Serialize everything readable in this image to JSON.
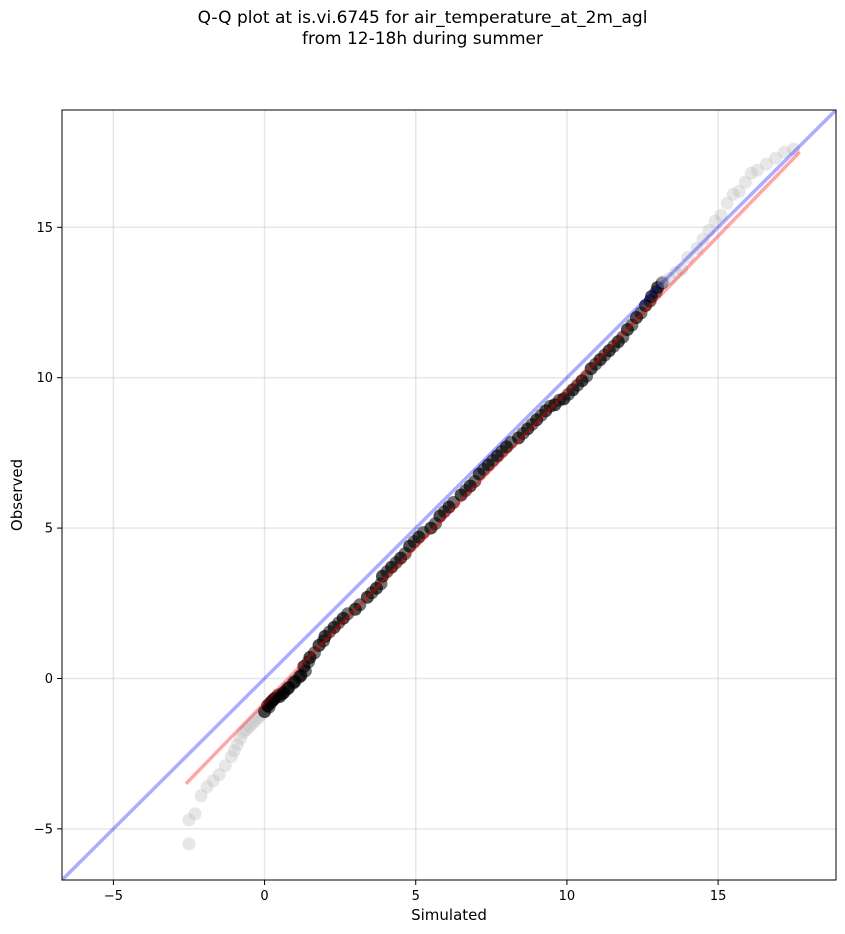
{
  "chart_data": {
    "type": "scatter",
    "title_line1": "Q-Q plot at is.vi.6745 for air_temperature_at_2m_agl",
    "title_line2": "from 12-18h during summer",
    "xlabel": "Simulated",
    "ylabel": "Observed",
    "xlim": [
      -6.7,
      18.9
    ],
    "ylim": [
      -6.7,
      18.9
    ],
    "xticks": [
      -5,
      0,
      5,
      10,
      15
    ],
    "yticks": [
      -5,
      0,
      5,
      10,
      15
    ],
    "xtick_labels": [
      "−5",
      "0",
      "5",
      "10",
      "15"
    ],
    "ytick_labels": [
      "−5",
      "0",
      "5",
      "10",
      "15"
    ],
    "grid": true,
    "series": [
      {
        "kind": "points",
        "color": "#000000",
        "tail_color": "#bbbbbb",
        "points": [
          [
            -2.5,
            -5.5
          ],
          [
            -2.5,
            -4.7
          ],
          [
            -2.3,
            -4.5
          ],
          [
            -2.1,
            -3.9
          ],
          [
            -1.9,
            -3.6
          ],
          [
            -1.7,
            -3.4
          ],
          [
            -1.5,
            -3.2
          ],
          [
            -1.3,
            -2.9
          ],
          [
            -1.1,
            -2.6
          ],
          [
            -1.0,
            -2.4
          ],
          [
            -0.9,
            -2.2
          ],
          [
            -0.8,
            -2.0
          ],
          [
            -0.7,
            -1.8
          ],
          [
            -0.6,
            -1.7
          ],
          [
            -0.5,
            -1.6
          ],
          [
            -0.4,
            -1.5
          ],
          [
            -0.3,
            -1.4
          ],
          [
            -0.2,
            -1.3
          ],
          [
            -0.1,
            -1.2
          ],
          [
            0.0,
            -1.1
          ],
          [
            0.1,
            -0.9
          ],
          [
            0.2,
            -0.8
          ],
          [
            0.3,
            -0.7
          ],
          [
            0.5,
            -0.6
          ],
          [
            0.6,
            -0.5
          ],
          [
            0.8,
            -0.3
          ],
          [
            1.0,
            -0.1
          ],
          [
            1.2,
            0.1
          ],
          [
            1.3,
            0.4
          ],
          [
            1.5,
            0.7
          ],
          [
            1.8,
            1.1
          ],
          [
            2.0,
            1.4
          ],
          [
            2.3,
            1.7
          ],
          [
            2.6,
            2.0
          ],
          [
            3.0,
            2.3
          ],
          [
            3.4,
            2.7
          ],
          [
            3.7,
            3.0
          ],
          [
            3.9,
            3.4
          ],
          [
            4.2,
            3.7
          ],
          [
            4.5,
            4.0
          ],
          [
            4.8,
            4.4
          ],
          [
            5.1,
            4.7
          ],
          [
            5.5,
            5.0
          ],
          [
            5.8,
            5.4
          ],
          [
            6.1,
            5.7
          ],
          [
            6.5,
            6.1
          ],
          [
            6.8,
            6.4
          ],
          [
            7.1,
            6.8
          ],
          [
            7.4,
            7.1
          ],
          [
            7.7,
            7.4
          ],
          [
            8.0,
            7.7
          ],
          [
            8.4,
            8.0
          ],
          [
            8.7,
            8.3
          ],
          [
            9.0,
            8.6
          ],
          [
            9.3,
            8.9
          ],
          [
            9.6,
            9.1
          ],
          [
            9.9,
            9.3
          ],
          [
            10.2,
            9.6
          ],
          [
            10.5,
            9.9
          ],
          [
            10.8,
            10.3
          ],
          [
            11.1,
            10.6
          ],
          [
            11.4,
            10.9
          ],
          [
            11.7,
            11.2
          ],
          [
            12.0,
            11.6
          ],
          [
            12.3,
            12.0
          ],
          [
            12.6,
            12.4
          ],
          [
            12.8,
            12.7
          ],
          [
            13.0,
            13.0
          ],
          [
            13.2,
            13.2
          ],
          [
            13.4,
            13.3
          ],
          [
            13.6,
            13.5
          ],
          [
            13.8,
            13.6
          ],
          [
            14.0,
            14.0
          ],
          [
            14.3,
            14.3
          ],
          [
            14.5,
            14.6
          ],
          [
            14.7,
            14.9
          ],
          [
            14.9,
            15.2
          ],
          [
            15.1,
            15.4
          ],
          [
            15.3,
            15.8
          ],
          [
            15.5,
            16.1
          ],
          [
            15.7,
            16.2
          ],
          [
            15.9,
            16.5
          ],
          [
            16.1,
            16.8
          ],
          [
            16.3,
            16.9
          ],
          [
            16.6,
            17.1
          ],
          [
            16.9,
            17.3
          ],
          [
            17.2,
            17.5
          ],
          [
            17.5,
            17.6
          ]
        ]
      },
      {
        "kind": "line",
        "color": "#ff0000",
        "points": [
          [
            -2.6,
            -3.5
          ],
          [
            17.7,
            17.5
          ]
        ]
      },
      {
        "kind": "identity-line",
        "color": "#0000ff",
        "points": [
          [
            -6.7,
            -6.7
          ],
          [
            18.9,
            18.9
          ]
        ]
      }
    ]
  }
}
